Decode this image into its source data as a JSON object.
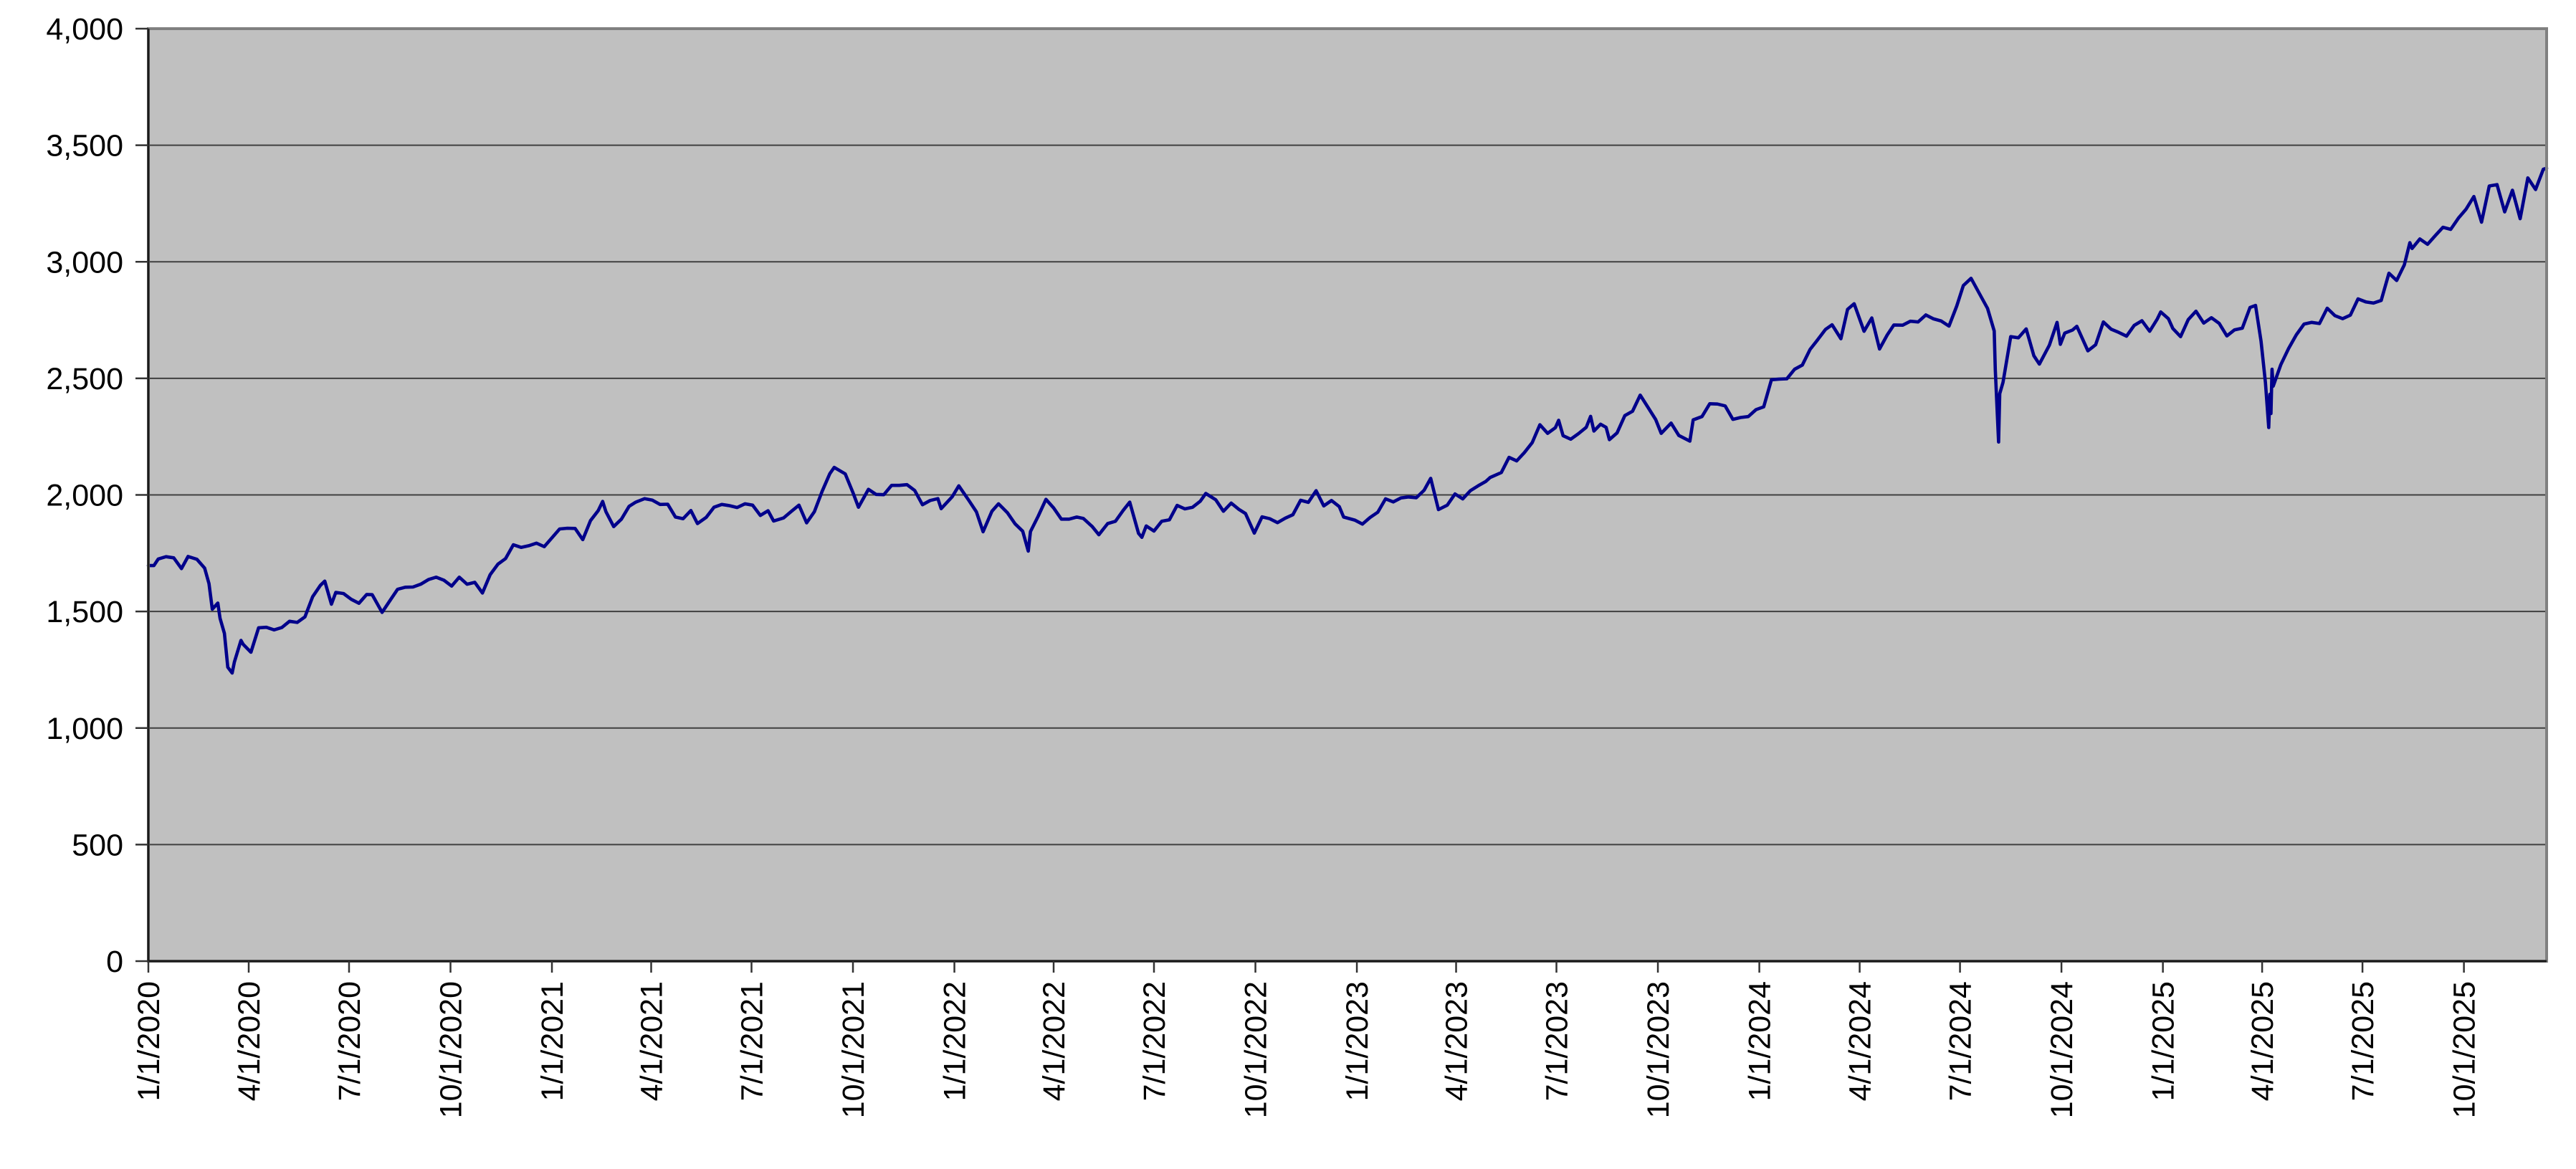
{
  "chart_data": {
    "type": "line",
    "title": "",
    "xlabel": "",
    "ylabel": "",
    "grid": true,
    "legend": false,
    "ylim": [
      0,
      4000
    ],
    "y_tick_step": 500,
    "y_tick_labels": [
      "4,000",
      "3,500",
      "3,000",
      "2,500",
      "2,000",
      "1,500",
      "1,000",
      "500",
      "0"
    ],
    "x_tick_labels": [
      "1/1/2020",
      "4/1/2020",
      "7/1/2020",
      "10/1/2020",
      "1/1/2021",
      "4/1/2021",
      "7/1/2021",
      "10/1/2021",
      "1/1/2022",
      "4/1/2022",
      "7/1/2022",
      "10/1/2022",
      "1/1/2023",
      "4/1/2023",
      "7/1/2023",
      "10/1/2023",
      "1/1/2024",
      "4/1/2024",
      "7/1/2024",
      "10/1/2024",
      "1/1/2025",
      "4/1/2025",
      "7/1/2025",
      "10/1/2025"
    ],
    "colors": {
      "line": "#00008B",
      "plot_background": "#C0C0C0",
      "page_background": "#FFFFFF",
      "gridline": "#404040",
      "plot_border": "#808080",
      "axis": "#1a1a1a",
      "tick": "#333333",
      "label": "#000000"
    },
    "points": [
      [
        "2020-01-01",
        1697
      ],
      [
        "2020-01-06",
        1697
      ],
      [
        "2020-01-10",
        1725
      ],
      [
        "2020-01-17",
        1735
      ],
      [
        "2020-01-24",
        1730
      ],
      [
        "2020-01-31",
        1684
      ],
      [
        "2020-02-06",
        1736
      ],
      [
        "2020-02-14",
        1724
      ],
      [
        "2020-02-21",
        1686
      ],
      [
        "2020-02-25",
        1619
      ],
      [
        "2020-02-28",
        1510
      ],
      [
        "2020-03-04",
        1536
      ],
      [
        "2020-03-06",
        1471
      ],
      [
        "2020-03-10",
        1406
      ],
      [
        "2020-03-13",
        1261
      ],
      [
        "2020-03-17",
        1236
      ],
      [
        "2020-03-19",
        1283
      ],
      [
        "2020-03-25",
        1376
      ],
      [
        "2020-03-27",
        1359
      ],
      [
        "2020-04-03",
        1325
      ],
      [
        "2020-04-10",
        1430
      ],
      [
        "2020-04-17",
        1432
      ],
      [
        "2020-04-24",
        1421
      ],
      [
        "2020-05-01",
        1431
      ],
      [
        "2020-05-08",
        1458
      ],
      [
        "2020-05-15",
        1453
      ],
      [
        "2020-05-22",
        1477
      ],
      [
        "2020-05-29",
        1563
      ],
      [
        "2020-06-05",
        1612
      ],
      [
        "2020-06-09",
        1630
      ],
      [
        "2020-06-15",
        1531
      ],
      [
        "2020-06-19",
        1582
      ],
      [
        "2020-06-26",
        1577
      ],
      [
        "2020-07-03",
        1552
      ],
      [
        "2020-07-10",
        1535
      ],
      [
        "2020-07-17",
        1573
      ],
      [
        "2020-07-22",
        1572
      ],
      [
        "2020-07-31",
        1496
      ],
      [
        "2020-08-07",
        1546
      ],
      [
        "2020-08-14",
        1595
      ],
      [
        "2020-08-21",
        1604
      ],
      [
        "2020-08-28",
        1605
      ],
      [
        "2020-09-04",
        1617
      ],
      [
        "2020-09-11",
        1637
      ],
      [
        "2020-09-18",
        1647
      ],
      [
        "2020-09-25",
        1634
      ],
      [
        "2020-10-02",
        1609
      ],
      [
        "2020-10-09",
        1647
      ],
      [
        "2020-10-16",
        1617
      ],
      [
        "2020-10-23",
        1625
      ],
      [
        "2020-10-30",
        1579
      ],
      [
        "2020-11-06",
        1658
      ],
      [
        "2020-11-13",
        1703
      ],
      [
        "2020-11-20",
        1727
      ],
      [
        "2020-11-27",
        1786
      ],
      [
        "2020-12-04",
        1775
      ],
      [
        "2020-12-11",
        1782
      ],
      [
        "2020-12-18",
        1793
      ],
      [
        "2020-12-25",
        1778
      ],
      [
        "2020-12-30",
        1805
      ],
      [
        "2021-01-08",
        1854
      ],
      [
        "2021-01-15",
        1857
      ],
      [
        "2021-01-22",
        1856
      ],
      [
        "2021-01-29",
        1808
      ],
      [
        "2021-02-05",
        1890
      ],
      [
        "2021-02-12",
        1933
      ],
      [
        "2021-02-16",
        1972
      ],
      [
        "2021-02-19",
        1928
      ],
      [
        "2021-02-26",
        1864
      ],
      [
        "2021-03-05",
        1896
      ],
      [
        "2021-03-12",
        1951
      ],
      [
        "2021-03-18",
        1969
      ],
      [
        "2021-03-26",
        1984
      ],
      [
        "2021-04-02",
        1978
      ],
      [
        "2021-04-09",
        1959
      ],
      [
        "2021-04-16",
        1960
      ],
      [
        "2021-04-23",
        1905
      ],
      [
        "2021-04-30",
        1898
      ],
      [
        "2021-05-07",
        1933
      ],
      [
        "2021-05-13",
        1877
      ],
      [
        "2021-05-21",
        1904
      ],
      [
        "2021-05-28",
        1947
      ],
      [
        "2021-06-04",
        1959
      ],
      [
        "2021-06-11",
        1954
      ],
      [
        "2021-06-18",
        1946
      ],
      [
        "2021-06-25",
        1962
      ],
      [
        "2021-07-02",
        1956
      ],
      [
        "2021-07-09",
        1912
      ],
      [
        "2021-07-16",
        1932
      ],
      [
        "2021-07-21",
        1888
      ],
      [
        "2021-07-30",
        1901
      ],
      [
        "2021-08-06",
        1929
      ],
      [
        "2021-08-13",
        1956
      ],
      [
        "2021-08-20",
        1880
      ],
      [
        "2021-08-27",
        1928
      ],
      [
        "2021-09-03",
        2015
      ],
      [
        "2021-09-10",
        2091
      ],
      [
        "2021-09-14",
        2118
      ],
      [
        "2021-09-24",
        2090
      ],
      [
        "2021-10-01",
        2010
      ],
      [
        "2021-10-06",
        1947
      ],
      [
        "2021-10-15",
        2024
      ],
      [
        "2021-10-22",
        2002
      ],
      [
        "2021-10-29",
        2001
      ],
      [
        "2021-11-05",
        2041
      ],
      [
        "2021-11-12",
        2041
      ],
      [
        "2021-11-19",
        2044
      ],
      [
        "2021-11-26",
        2019
      ],
      [
        "2021-12-03",
        1958
      ],
      [
        "2021-12-10",
        1976
      ],
      [
        "2021-12-17",
        1984
      ],
      [
        "2021-12-20",
        1941
      ],
      [
        "2021-12-30",
        1992
      ],
      [
        "2022-01-05",
        2039
      ],
      [
        "2022-01-14",
        1977
      ],
      [
        "2022-01-21",
        1927
      ],
      [
        "2022-01-27",
        1842
      ],
      [
        "2022-02-04",
        1930
      ],
      [
        "2022-02-10",
        1962
      ],
      [
        "2022-02-18",
        1924
      ],
      [
        "2022-02-25",
        1876
      ],
      [
        "2022-03-04",
        1844
      ],
      [
        "2022-03-09",
        1759
      ],
      [
        "2022-03-11",
        1843
      ],
      [
        "2022-03-18",
        1909
      ],
      [
        "2022-03-25",
        1981
      ],
      [
        "2022-04-01",
        1944
      ],
      [
        "2022-04-08",
        1896
      ],
      [
        "2022-04-15",
        1896
      ],
      [
        "2022-04-22",
        1905
      ],
      [
        "2022-04-28",
        1899
      ],
      [
        "2022-05-06",
        1864
      ],
      [
        "2022-05-12",
        1829
      ],
      [
        "2022-05-20",
        1877
      ],
      [
        "2022-05-27",
        1887
      ],
      [
        "2022-06-03",
        1933
      ],
      [
        "2022-06-09",
        1969
      ],
      [
        "2022-06-17",
        1835
      ],
      [
        "2022-06-20",
        1818
      ],
      [
        "2022-06-24",
        1867
      ],
      [
        "2022-07-01",
        1845
      ],
      [
        "2022-07-08",
        1887
      ],
      [
        "2022-07-15",
        1893
      ],
      [
        "2022-07-22",
        1955
      ],
      [
        "2022-07-29",
        1940
      ],
      [
        "2022-08-05",
        1947
      ],
      [
        "2022-08-12",
        1973
      ],
      [
        "2022-08-17",
        2006
      ],
      [
        "2022-08-26",
        1979
      ],
      [
        "2022-09-02",
        1930
      ],
      [
        "2022-09-09",
        1965
      ],
      [
        "2022-09-16",
        1938
      ],
      [
        "2022-09-22",
        1920
      ],
      [
        "2022-09-30",
        1836
      ],
      [
        "2022-10-07",
        1906
      ],
      [
        "2022-10-14",
        1898
      ],
      [
        "2022-10-21",
        1881
      ],
      [
        "2022-10-28",
        1900
      ],
      [
        "2022-11-04",
        1915
      ],
      [
        "2022-11-11",
        1977
      ],
      [
        "2022-11-18",
        1968
      ],
      [
        "2022-11-25",
        2018
      ],
      [
        "2022-12-02",
        1953
      ],
      [
        "2022-12-09",
        1976
      ],
      [
        "2022-12-16",
        1950
      ],
      [
        "2022-12-20",
        1905
      ],
      [
        "2022-12-30",
        1892
      ],
      [
        "2023-01-06",
        1875
      ],
      [
        "2023-01-13",
        1903
      ],
      [
        "2023-01-20",
        1926
      ],
      [
        "2023-01-27",
        1983
      ],
      [
        "2023-02-03",
        1970
      ],
      [
        "2023-02-10",
        1987
      ],
      [
        "2023-02-17",
        1991
      ],
      [
        "2023-02-24",
        1988
      ],
      [
        "2023-03-03",
        2020
      ],
      [
        "2023-03-09",
        2071
      ],
      [
        "2023-03-16",
        1937
      ],
      [
        "2023-03-24",
        1956
      ],
      [
        "2023-03-31",
        2004
      ],
      [
        "2023-04-07",
        1983
      ],
      [
        "2023-04-14",
        2018
      ],
      [
        "2023-04-21",
        2039
      ],
      [
        "2023-04-28",
        2058
      ],
      [
        "2023-05-02",
        2075
      ],
      [
        "2023-05-12",
        2096
      ],
      [
        "2023-05-19",
        2161
      ],
      [
        "2023-05-26",
        2146
      ],
      [
        "2023-06-02",
        2182
      ],
      [
        "2023-06-09",
        2224
      ],
      [
        "2023-06-16",
        2301
      ],
      [
        "2023-06-23",
        2264
      ],
      [
        "2023-06-30",
        2288
      ],
      [
        "2023-07-03",
        2320
      ],
      [
        "2023-07-07",
        2254
      ],
      [
        "2023-07-14",
        2239
      ],
      [
        "2023-07-21",
        2263
      ],
      [
        "2023-07-28",
        2290
      ],
      [
        "2023-08-01",
        2337
      ],
      [
        "2023-08-04",
        2274
      ],
      [
        "2023-08-10",
        2303
      ],
      [
        "2023-08-15",
        2290
      ],
      [
        "2023-08-18",
        2237
      ],
      [
        "2023-08-25",
        2266
      ],
      [
        "2023-09-01",
        2340
      ],
      [
        "2023-09-08",
        2359
      ],
      [
        "2023-09-15",
        2428
      ],
      [
        "2023-09-22",
        2376
      ],
      [
        "2023-09-29",
        2323
      ],
      [
        "2023-10-04",
        2264
      ],
      [
        "2023-10-13",
        2308
      ],
      [
        "2023-10-20",
        2255
      ],
      [
        "2023-10-30",
        2231
      ],
      [
        "2023-11-02",
        2322
      ],
      [
        "2023-11-10",
        2336
      ],
      [
        "2023-11-17",
        2391
      ],
      [
        "2023-11-24",
        2390
      ],
      [
        "2023-12-01",
        2382
      ],
      [
        "2023-12-08",
        2324
      ],
      [
        "2023-12-15",
        2332
      ],
      [
        "2023-12-22",
        2336
      ],
      [
        "2023-12-29",
        2366
      ],
      [
        "2024-01-05",
        2378
      ],
      [
        "2024-01-12",
        2494
      ],
      [
        "2024-01-19",
        2497
      ],
      [
        "2024-01-26",
        2498
      ],
      [
        "2024-02-02",
        2539
      ],
      [
        "2024-02-09",
        2557
      ],
      [
        "2024-02-16",
        2624
      ],
      [
        "2024-02-22",
        2660
      ],
      [
        "2024-03-01",
        2710
      ],
      [
        "2024-03-07",
        2730
      ],
      [
        "2024-03-15",
        2670
      ],
      [
        "2024-03-21",
        2796
      ],
      [
        "2024-03-27",
        2820
      ],
      [
        "2024-04-05",
        2702
      ],
      [
        "2024-04-12",
        2759
      ],
      [
        "2024-04-19",
        2626
      ],
      [
        "2024-04-26",
        2686
      ],
      [
        "2024-05-02",
        2729
      ],
      [
        "2024-05-10",
        2728
      ],
      [
        "2024-05-17",
        2745
      ],
      [
        "2024-05-24",
        2742
      ],
      [
        "2024-05-31",
        2772
      ],
      [
        "2024-06-07",
        2755
      ],
      [
        "2024-06-14",
        2746
      ],
      [
        "2024-06-21",
        2724
      ],
      [
        "2024-06-28",
        2810
      ],
      [
        "2024-07-04",
        2898
      ],
      [
        "2024-07-11",
        2929
      ],
      [
        "2024-07-19",
        2860
      ],
      [
        "2024-07-26",
        2800
      ],
      [
        "2024-08-01",
        2703
      ],
      [
        "2024-08-02",
        2537
      ],
      [
        "2024-08-05",
        2227
      ],
      [
        "2024-08-06",
        2434
      ],
      [
        "2024-08-09",
        2483
      ],
      [
        "2024-08-16",
        2679
      ],
      [
        "2024-08-23",
        2674
      ],
      [
        "2024-08-30",
        2712
      ],
      [
        "2024-09-06",
        2597
      ],
      [
        "2024-09-11",
        2561
      ],
      [
        "2024-09-20",
        2642
      ],
      [
        "2024-09-27",
        2740
      ],
      [
        "2024-09-30",
        2646
      ],
      [
        "2024-10-04",
        2694
      ],
      [
        "2024-10-11",
        2707
      ],
      [
        "2024-10-15",
        2723
      ],
      [
        "2024-10-25",
        2618
      ],
      [
        "2024-11-01",
        2644
      ],
      [
        "2024-11-08",
        2742
      ],
      [
        "2024-11-15",
        2711
      ],
      [
        "2024-11-22",
        2697
      ],
      [
        "2024-11-29",
        2681
      ],
      [
        "2024-12-06",
        2727
      ],
      [
        "2024-12-13",
        2747
      ],
      [
        "2024-12-20",
        2702
      ],
      [
        "2024-12-27",
        2755
      ],
      [
        "2024-12-30",
        2785
      ],
      [
        "2025-01-06",
        2756
      ],
      [
        "2025-01-10",
        2714
      ],
      [
        "2025-01-17",
        2679
      ],
      [
        "2025-01-24",
        2752
      ],
      [
        "2025-01-31",
        2788
      ],
      [
        "2025-02-07",
        2737
      ],
      [
        "2025-02-14",
        2760
      ],
      [
        "2025-02-21",
        2736
      ],
      [
        "2025-02-28",
        2682
      ],
      [
        "2025-03-07",
        2708
      ],
      [
        "2025-03-14",
        2715
      ],
      [
        "2025-03-21",
        2804
      ],
      [
        "2025-03-26",
        2813
      ],
      [
        "2025-03-31",
        2659
      ],
      [
        "2025-04-04",
        2482
      ],
      [
        "2025-04-07",
        2289
      ],
      [
        "2025-04-08",
        2432
      ],
      [
        "2025-04-09",
        2349
      ],
      [
        "2025-04-10",
        2539
      ],
      [
        "2025-04-11",
        2466
      ],
      [
        "2025-04-18",
        2559
      ],
      [
        "2025-04-25",
        2628
      ],
      [
        "2025-05-02",
        2687
      ],
      [
        "2025-05-09",
        2733
      ],
      [
        "2025-05-16",
        2740
      ],
      [
        "2025-05-23",
        2735
      ],
      [
        "2025-05-30",
        2801
      ],
      [
        "2025-06-06",
        2769
      ],
      [
        "2025-06-13",
        2756
      ],
      [
        "2025-06-20",
        2771
      ],
      [
        "2025-06-27",
        2841
      ],
      [
        "2025-07-04",
        2828
      ],
      [
        "2025-07-11",
        2823
      ],
      [
        "2025-07-18",
        2834
      ],
      [
        "2025-07-25",
        2951
      ],
      [
        "2025-08-01",
        2920
      ],
      [
        "2025-08-08",
        2987
      ],
      [
        "2025-08-13",
        3082
      ],
      [
        "2025-08-15",
        3057
      ],
      [
        "2025-08-22",
        3098
      ],
      [
        "2025-08-29",
        3075
      ],
      [
        "2025-09-05",
        3112
      ],
      [
        "2025-09-12",
        3148
      ],
      [
        "2025-09-19",
        3139
      ],
      [
        "2025-09-26",
        3187
      ],
      [
        "2025-10-03",
        3226
      ],
      [
        "2025-10-10",
        3280
      ],
      [
        "2025-10-17",
        3170
      ],
      [
        "2025-10-24",
        3325
      ],
      [
        "2025-10-31",
        3331
      ],
      [
        "2025-11-07",
        3214
      ],
      [
        "2025-11-14",
        3307
      ],
      [
        "2025-11-21",
        3185
      ],
      [
        "2025-11-28",
        3360
      ],
      [
        "2025-12-05",
        3310
      ],
      [
        "2025-12-12",
        3397
      ],
      [
        "2025-12-15",
        3401
      ]
    ]
  }
}
